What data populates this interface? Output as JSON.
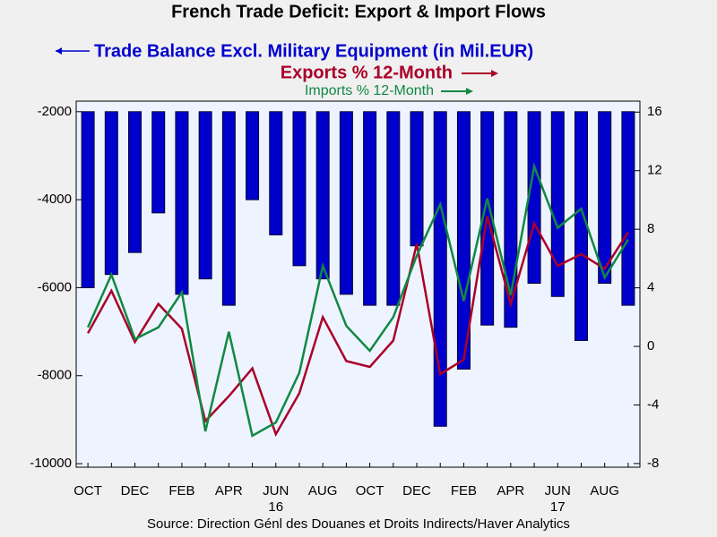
{
  "chart_data": {
    "type": "bar-line",
    "title": "French Trade Deficit: Export & Import Flows",
    "source": "Source:  Direction Génl des Douanes et Droits Indirects/Haver Analytics",
    "categories": [
      "OCT",
      null,
      "DEC",
      null,
      "FEB",
      null,
      "APR",
      null,
      "JUN",
      null,
      "AUG",
      null,
      "OCT",
      null,
      "DEC",
      null,
      "FEB",
      null,
      "APR",
      null,
      "JUN",
      null,
      "AUG",
      null
    ],
    "year_labels": [
      null,
      null,
      null,
      null,
      null,
      null,
      null,
      null,
      "16",
      null,
      null,
      null,
      null,
      null,
      null,
      null,
      null,
      null,
      null,
      null,
      "17",
      null,
      null,
      null
    ],
    "series": [
      {
        "name": "Trade Balance Excl. Military Equipment (in Mil.EUR)",
        "type": "bar",
        "color": "#0000cc",
        "values": [
          -6000,
          -5700,
          -5200,
          -4300,
          -6150,
          -5800,
          -6400,
          -4000,
          -4800,
          -5500,
          -5800,
          -6150,
          -6400,
          -6400,
          -5050,
          -9150,
          -7850,
          -6850,
          -6900,
          -5900,
          -6200,
          -7200,
          -5900,
          -6400
        ]
      },
      {
        "name": "Exports % 12-Month",
        "type": "line",
        "axis": "y2",
        "color": "#aa0028",
        "values": [
          0.9,
          3.8,
          0.3,
          2.9,
          1.2,
          -5.1,
          -3.4,
          -1.5,
          -6.0,
          -3.2,
          2.0,
          -1.0,
          -1.4,
          0.4,
          7.0,
          -1.9,
          -0.9,
          8.9,
          2.9,
          8.4,
          5.5,
          6.3,
          5.3,
          7.8
        ]
      },
      {
        "name": "Imports % 12-Month",
        "type": "line",
        "axis": "y2",
        "color": "#118844",
        "values": [
          1.3,
          4.9,
          0.5,
          1.3,
          3.7,
          -5.8,
          1.0,
          -6.1,
          -5.2,
          -1.8,
          5.5,
          1.4,
          -0.3,
          2.0,
          6.2,
          9.7,
          3.1,
          10.1,
          3.5,
          12.3,
          8.1,
          9.4,
          4.7,
          7.3
        ]
      }
    ],
    "ylim": [
      -10080,
      -1760
    ],
    "yticks": [
      -10000,
      -8000,
      -6000,
      -4000,
      -2000
    ],
    "y2lim": [
      -8.25,
      16.75
    ],
    "y2ticks": [
      -8,
      -4,
      0,
      4,
      8,
      12,
      16
    ],
    "bar_base": -2000
  }
}
